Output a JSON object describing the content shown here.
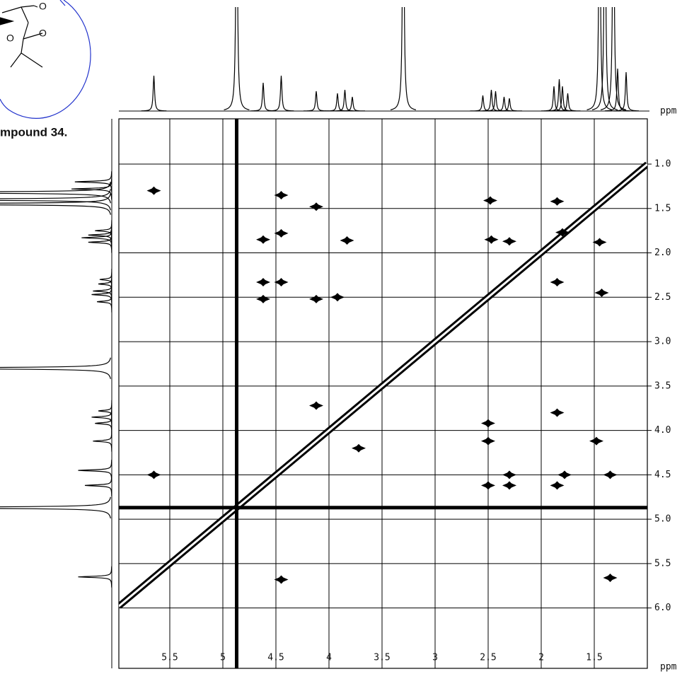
{
  "chart_data": {
    "type": "cosy",
    "caption": "mpound 34.",
    "structure_labels": [
      "O",
      "O",
      "O"
    ],
    "x_unit": "ppm",
    "y_unit": "ppm",
    "xlim": [
      5.98,
      1.0
    ],
    "ylim": [
      0.49,
      6.68
    ],
    "xticks": [
      5.5,
      5.0,
      4.5,
      4.0,
      3.5,
      3.0,
      2.5,
      2.0,
      1.5
    ],
    "yticks": [
      {
        "value": 1.0,
        "label": "1.0"
      },
      1.5,
      {
        "value": 2.0,
        "label": "2.0"
      },
      2.5,
      {
        "value": 3.0,
        "label": "3.0"
      },
      3.5,
      {
        "value": 4.0,
        "label": "4.0"
      },
      4.5,
      {
        "value": 5.0,
        "label": "5.0"
      },
      5.5,
      {
        "value": 6.0,
        "label": "6.0"
      }
    ],
    "grid": true,
    "color": "#000000",
    "solvent_line": 4.87,
    "spectrum": {
      "ppm": [
        5.65,
        4.87,
        4.62,
        4.45,
        4.12,
        3.92,
        3.85,
        3.78,
        3.3,
        2.55,
        2.47,
        2.43,
        2.35,
        2.3,
        1.88,
        1.83,
        1.8,
        1.75,
        1.45,
        1.4,
        1.32,
        1.28,
        1.2
      ],
      "height": [
        50,
        400,
        40,
        50,
        28,
        25,
        30,
        20,
        400,
        22,
        30,
        28,
        20,
        18,
        35,
        45,
        35,
        25,
        400,
        400,
        400,
        60,
        55
      ]
    },
    "cross_peaks": {
      "x": [
        5.65,
        4.45,
        4.12,
        4.45,
        4.62,
        3.83,
        4.62,
        4.45,
        4.62,
        4.12,
        3.92,
        2.48,
        2.47,
        2.3,
        1.85,
        1.8,
        1.45,
        1.43,
        1.85,
        2.5,
        2.5,
        2.3,
        2.5,
        2.3,
        1.85,
        1.78,
        1.85,
        1.48,
        1.35,
        4.12,
        3.72,
        4.45,
        5.65,
        1.35
      ],
      "y": [
        4.5,
        1.35,
        1.48,
        1.78,
        1.85,
        1.86,
        2.33,
        2.33,
        2.52,
        2.52,
        2.5,
        1.41,
        1.85,
        1.87,
        2.33,
        1.77,
        1.88,
        2.45,
        1.42,
        3.92,
        4.12,
        4.5,
        4.62,
        4.62,
        3.8,
        4.5,
        4.62,
        4.12,
        4.5,
        3.72,
        4.2,
        5.68,
        1.3,
        5.66
      ]
    }
  }
}
